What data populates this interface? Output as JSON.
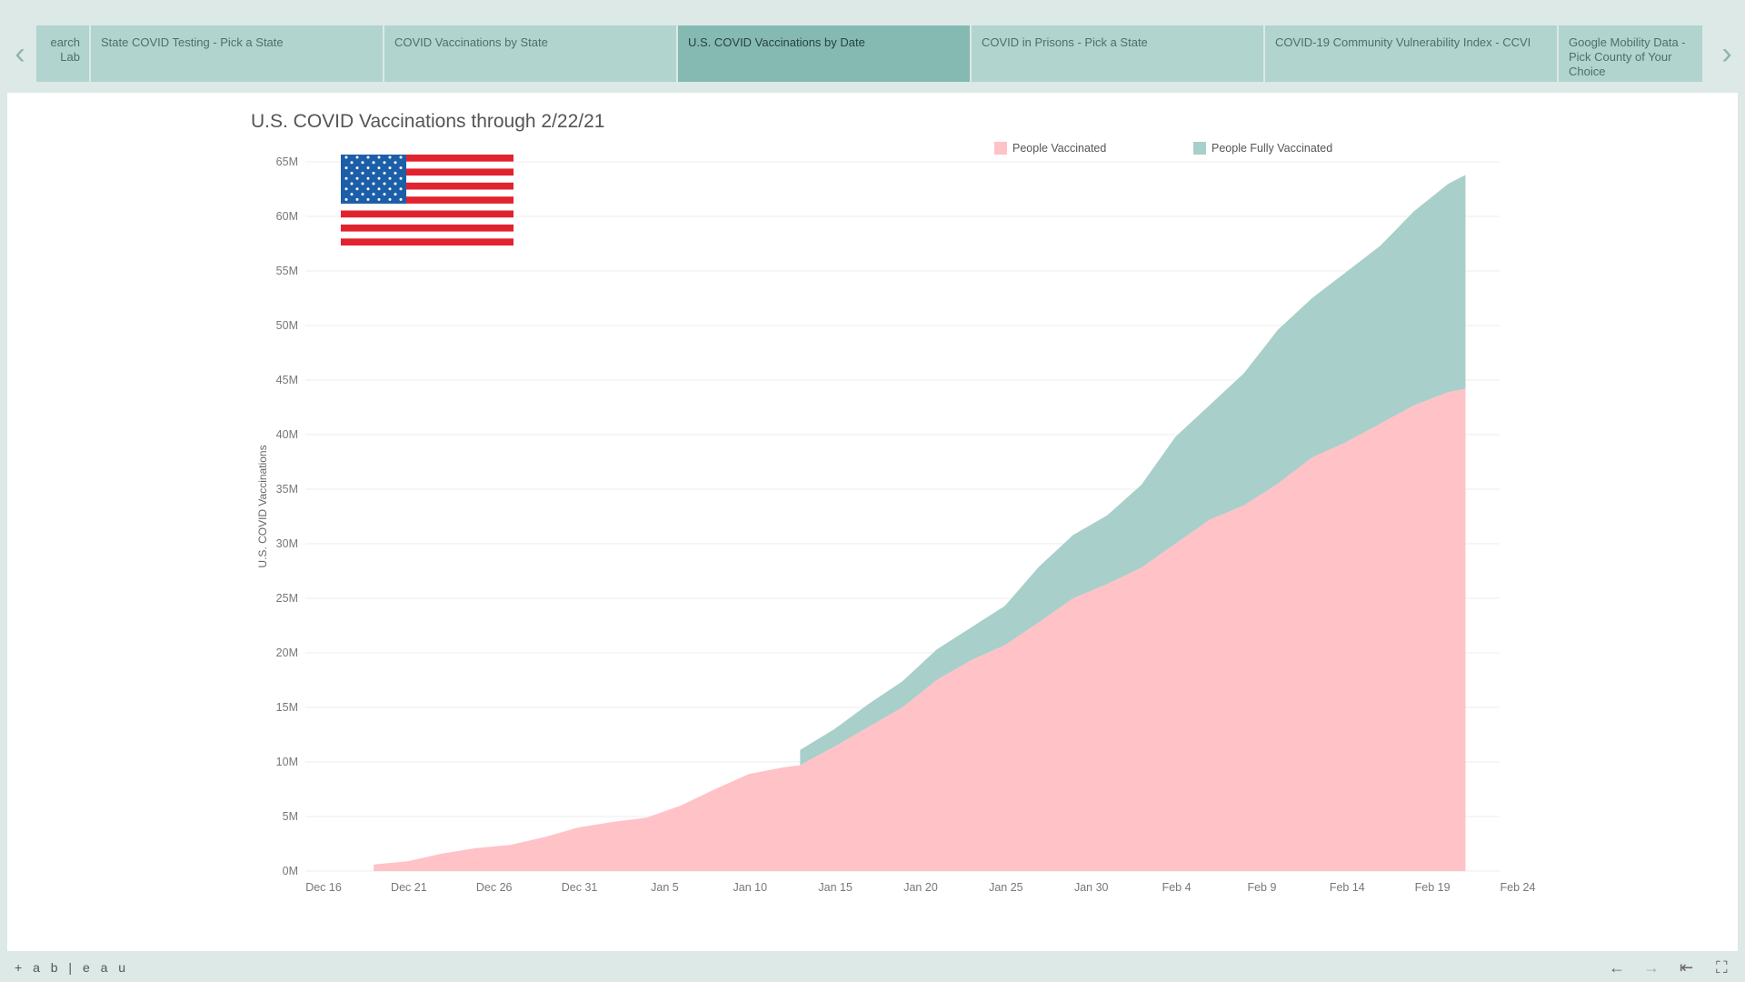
{
  "tabs": [
    {
      "label": "earch Lab",
      "active": false
    },
    {
      "label": "State COVID Testing - Pick a State",
      "active": false
    },
    {
      "label": "COVID Vaccinations by State",
      "active": false
    },
    {
      "label": "U.S. COVID Vaccinations by Date",
      "active": true
    },
    {
      "label": "COVID in Prisons - Pick a State",
      "active": false
    },
    {
      "label": "COVID-19 Community Vulnerability Index - CCVI",
      "active": false
    },
    {
      "label": "Google Mobility Data - Pick County of Your Choice",
      "active": false
    }
  ],
  "nav": {
    "prev_icon": "chevron-left-icon",
    "next_icon": "chevron-right-icon"
  },
  "footer": {
    "logo": "+ a b | e a u",
    "controls": [
      "back-arrow-icon",
      "forward-arrow-icon",
      "reset-icon",
      "fullscreen-icon"
    ]
  },
  "colors": {
    "people_vaccinated": "#ffc2c7",
    "people_fully_vaccinated": "#a8cfca",
    "active_tab": "#85bab2",
    "tab": "#b2d4cf",
    "background": "#dce9e6"
  },
  "chart_data": {
    "type": "area",
    "stacked": true,
    "title": "U.S. COVID Vaccinations through 2/22/21",
    "ylabel": "U.S. COVID Vaccinations",
    "xlabel": "",
    "x_ticks": [
      "Dec 16",
      "Dec 21",
      "Dec 26",
      "Dec 31",
      "Jan 5",
      "Jan 10",
      "Jan 15",
      "Jan 20",
      "Jan 25",
      "Jan 30",
      "Feb 4",
      "Feb 9",
      "Feb 14",
      "Feb 19",
      "Feb 24"
    ],
    "y_ticks": [
      "0M",
      "5M",
      "10M",
      "15M",
      "20M",
      "25M",
      "30M",
      "35M",
      "40M",
      "45M",
      "50M",
      "55M",
      "60M",
      "65M"
    ],
    "ylim": [
      0,
      65
    ],
    "y_unit": "M",
    "legend": {
      "position": "top-right",
      "entries": [
        "People Vaccinated",
        "People Fully Vaccinated"
      ]
    },
    "grid": true,
    "x": [
      "2020-12-20",
      "2020-12-22",
      "2020-12-24",
      "2020-12-26",
      "2020-12-28",
      "2020-12-30",
      "2021-01-01",
      "2021-01-03",
      "2021-01-05",
      "2021-01-07",
      "2021-01-09",
      "2021-01-11",
      "2021-01-13",
      "2021-01-14",
      "2021-01-16",
      "2021-01-18",
      "2021-01-20",
      "2021-01-22",
      "2021-01-24",
      "2021-01-26",
      "2021-01-28",
      "2021-01-30",
      "2021-02-01",
      "2021-02-03",
      "2021-02-05",
      "2021-02-07",
      "2021-02-09",
      "2021-02-11",
      "2021-02-13",
      "2021-02-15",
      "2021-02-17",
      "2021-02-19",
      "2021-02-21",
      "2021-02-22"
    ],
    "series": [
      {
        "name": "People Vaccinated",
        "values": [
          0.6,
          0.9,
          1.6,
          2.1,
          2.4,
          3.1,
          4.0,
          4.5,
          4.9,
          6.0,
          7.5,
          8.9,
          9.5,
          9.7,
          11.4,
          13.2,
          15.0,
          17.5,
          19.3,
          20.7,
          22.8,
          25.0,
          26.3,
          27.8,
          30.0,
          32.2,
          33.5,
          35.5,
          37.9,
          39.3,
          41.0,
          42.7,
          43.9,
          44.2
        ],
        "total": [
          0.6,
          0.9,
          1.6,
          2.1,
          2.4,
          3.1,
          4.0,
          4.5,
          4.9,
          6.0,
          7.5,
          8.9,
          9.5,
          9.7,
          11.4,
          13.2,
          15.0,
          17.5,
          19.3,
          20.7,
          22.8,
          25.0,
          26.3,
          27.8,
          30.0,
          32.2,
          33.5,
          35.5,
          37.9,
          39.3,
          41.0,
          42.7,
          43.9,
          44.2
        ]
      },
      {
        "name": "People Fully Vaccinated",
        "values": [
          0,
          0,
          0,
          0,
          0,
          0,
          0,
          0,
          0,
          0,
          0,
          0,
          0,
          1.4,
          1.6,
          2.1,
          2.4,
          2.8,
          3.0,
          3.6,
          5.1,
          5.8,
          6.3,
          7.6,
          9.8,
          10.5,
          12.1,
          14.1,
          14.6,
          15.6,
          16.3,
          17.8,
          19.1,
          19.6
        ],
        "total": [
          0.6,
          0.9,
          1.6,
          2.1,
          2.4,
          3.1,
          4.0,
          4.5,
          4.9,
          6.0,
          7.5,
          8.9,
          9.5,
          11.1,
          13.0,
          15.3,
          17.4,
          20.3,
          22.3,
          24.3,
          27.9,
          30.8,
          32.6,
          35.4,
          39.8,
          42.7,
          45.6,
          49.6,
          52.5,
          54.9,
          57.3,
          60.5,
          63.0,
          63.8
        ]
      }
    ]
  }
}
